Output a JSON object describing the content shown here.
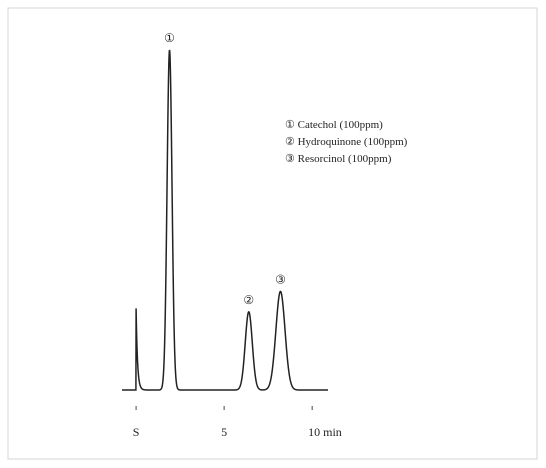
{
  "chart_data": {
    "type": "chromatogram",
    "peaks": {
      "labels": [
        null,
        "①",
        "②",
        "③"
      ],
      "x": [
        0,
        1.9,
        6.4,
        8.2
      ],
      "values": [
        24,
        100,
        23,
        29
      ]
    },
    "legend": [
      "① Catechol (100ppm)",
      "② Hydroquinone (100ppm)",
      "③ Resorcinol (100ppm)"
    ],
    "xlim": [
      -0.8,
      10.9
    ],
    "ylim": [
      0,
      100
    ],
    "xticks": [
      {
        "value": 0,
        "label": "S"
      },
      5,
      {
        "value": 10,
        "label": "10 min"
      }
    ],
    "color": "#222222"
  }
}
